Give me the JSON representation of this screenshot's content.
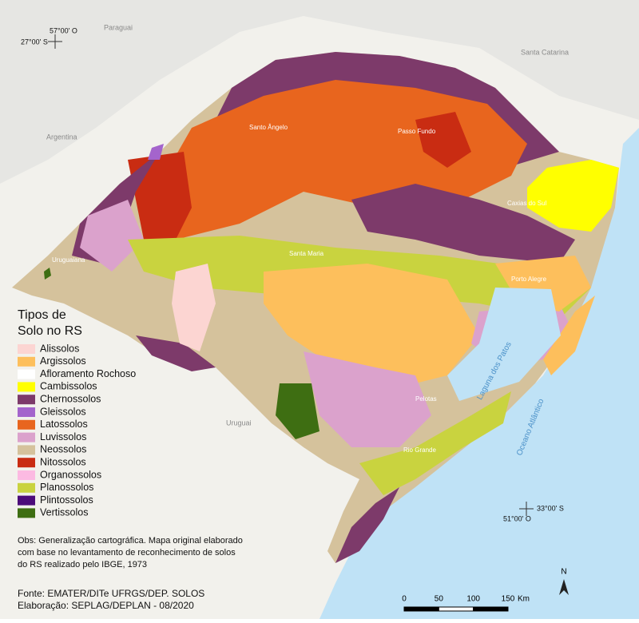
{
  "map": {
    "coordinates": {
      "top_left_lon": "57°00' O",
      "top_left_lat": "27°00' S",
      "bottom_right_lat": "33°00' S",
      "bottom_right_lon": "51°00' O"
    },
    "countries": {
      "paraguai": "Paraguai",
      "santa_catarina": "Santa Catarina",
      "argentina": "Argentina",
      "uruguai": "Uruguai"
    },
    "cities": [
      "Santo Ângelo",
      "Passo Fundo",
      "Caxias do Sul",
      "Uruguaiana",
      "Santa Maria",
      "Porto Alegre",
      "Pelotas",
      "Rio Grande"
    ],
    "water": {
      "lagoon": "Laguna dos Patos",
      "ocean": "Oceano Atlântico"
    }
  },
  "legend": {
    "title": [
      "Tipos de",
      "Solo no RS"
    ],
    "items": [
      {
        "label": "Alissolos",
        "color": "#fcd5d2"
      },
      {
        "label": "Argissolos",
        "color": "#fdbf5c"
      },
      {
        "label": "Afloramento Rochoso",
        "color": "#ffffff"
      },
      {
        "label": "Cambissolos",
        "color": "#ffff00"
      },
      {
        "label": "Chernossolos",
        "color": "#7d3a6a"
      },
      {
        "label": "Gleissolos",
        "color": "#a464cc"
      },
      {
        "label": "Latossolos",
        "color": "#e8651e"
      },
      {
        "label": "Luvissolos",
        "color": "#dba2cc"
      },
      {
        "label": "Neossolos",
        "color": "#d5c29c"
      },
      {
        "label": "Nitossolos",
        "color": "#c92c12"
      },
      {
        "label": "Organossolos",
        "color": "#fcbae2"
      },
      {
        "label": "Planossolos",
        "color": "#c9d33f"
      },
      {
        "label": "Plintossolos",
        "color": "#4c0c7a"
      },
      {
        "label": "Vertissolos",
        "color": "#3e6e12"
      }
    ]
  },
  "notes": {
    "obs": [
      "Obs: Generalização cartográfica. Mapa original elaborado",
      " com base no levantamento de reconhecimento de solos",
      "do RS realizado pelo IBGE, 1973"
    ],
    "credits": [
      "Fonte: EMATER/DITe UFRGS/DEP. SOLOS",
      "Elaboração: SEPLAG/DEPLAN - 08/2020"
    ]
  },
  "scale": {
    "ticks": [
      0,
      50,
      100,
      150
    ],
    "unit": "Km"
  },
  "north": "N"
}
